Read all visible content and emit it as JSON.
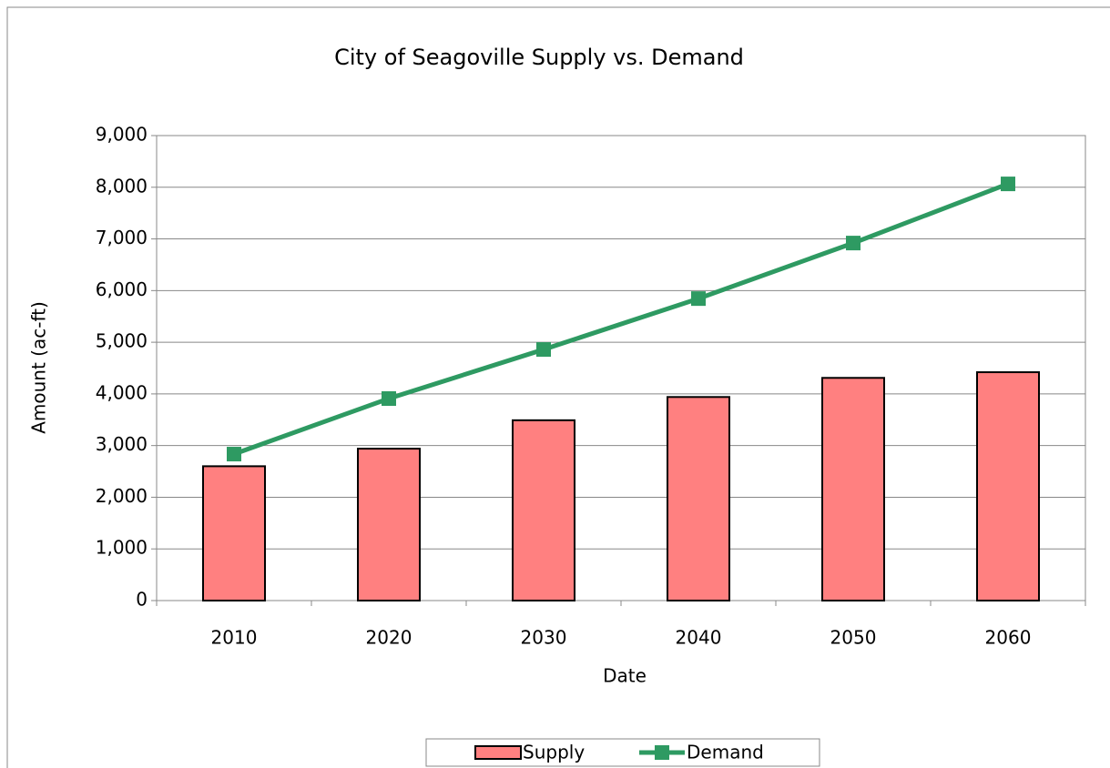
{
  "chart_data": {
    "type": "bar",
    "title": "City of Seagoville Supply vs. Demand",
    "x_label": "Date",
    "y_label": "Amount (ac-ft)",
    "categories": [
      "2010",
      "2020",
      "2030",
      "2040",
      "2050",
      "2060"
    ],
    "series": [
      {
        "name": "Supply",
        "type": "bar",
        "color": "#ff8080",
        "values": [
          2600,
          2940,
          3490,
          3940,
          4310,
          4420
        ]
      },
      {
        "name": "Demand",
        "type": "line",
        "color": "#2e9a62",
        "values": [
          2835,
          3910,
          4860,
          5845,
          6920,
          8065
        ]
      }
    ],
    "ylim": [
      0,
      9000
    ],
    "yticks": [
      0,
      {
        "value": 1000,
        "label": "1,000"
      },
      {
        "value": 2000,
        "label": "2,000"
      },
      {
        "value": 3000,
        "label": "3,000"
      },
      {
        "value": 4000,
        "label": "4,000"
      },
      {
        "value": 5000,
        "label": "5,000"
      },
      {
        "value": 6000,
        "label": "6,000"
      },
      {
        "value": 7000,
        "label": "7,000"
      },
      {
        "value": 8000,
        "label": "8,000"
      },
      {
        "value": 9000,
        "label": "9,000"
      }
    ],
    "grid": true,
    "legend": "bottom"
  }
}
